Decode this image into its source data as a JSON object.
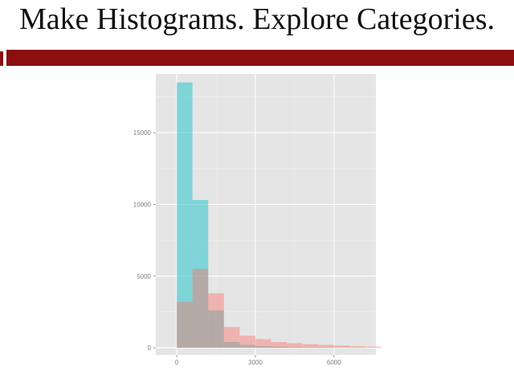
{
  "slide": {
    "title": "Make Histograms. Explore Categories."
  },
  "colors": {
    "accent_bar": "#8b0f0f",
    "panel_background": "#e5e5e5",
    "grid_major": "#ffffff",
    "grid_minor": "#efefef",
    "tick_text": "#7f7f7f"
  },
  "chart_data": {
    "type": "histogram",
    "title": "",
    "xlabel": "",
    "ylabel": "",
    "legend": "none",
    "grid": true,
    "xlim": [
      -800,
      7600
    ],
    "ylim": [
      -500,
      19100
    ],
    "x_ticks": [
      0,
      3000,
      6000
    ],
    "y_ticks": [
      0,
      5000,
      10000,
      15000
    ],
    "x_tick_labels": [
      "0",
      "3000",
      "6000"
    ],
    "y_tick_labels": [
      "0",
      "5000",
      "10000",
      "15000"
    ],
    "bin_width": 600,
    "bin_starts": [
      0,
      600,
      1200,
      1800,
      2400,
      3000,
      3600,
      4200,
      4800,
      5400,
      6000,
      6600,
      7200
    ],
    "series": [
      {
        "color": "#00bfc4",
        "opacity": 0.45,
        "values": [
          18500,
          10300,
          2600,
          400,
          200,
          120,
          80,
          50,
          30,
          20,
          10,
          5,
          0
        ]
      },
      {
        "color": "#f8766d",
        "opacity": 0.45,
        "values": [
          3200,
          5500,
          3800,
          1450,
          850,
          600,
          400,
          320,
          250,
          200,
          160,
          110,
          80
        ]
      }
    ]
  }
}
